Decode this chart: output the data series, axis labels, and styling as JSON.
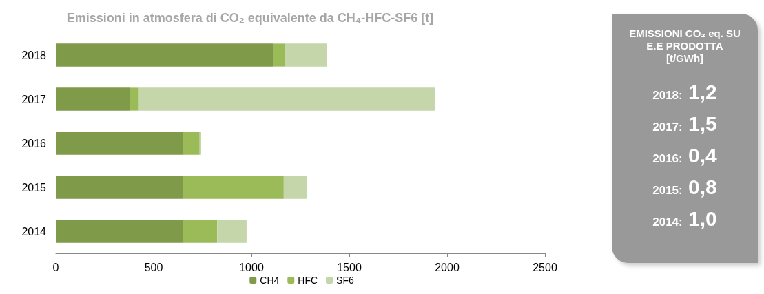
{
  "chart_data": {
    "type": "bar",
    "orientation": "horizontal",
    "stacked": true,
    "title": "Emissioni in atmosfera di CO₂ equivalente da CH₄-HFC-SF6 [t]",
    "categories": [
      "2018",
      "2017",
      "2016",
      "2015",
      "2014"
    ],
    "series": [
      {
        "name": "CH4",
        "color": "#7f9a48",
        "values": [
          1110,
          380,
          650,
          650,
          650
        ]
      },
      {
        "name": "HFC",
        "color": "#9bbb59",
        "values": [
          60,
          45,
          85,
          515,
          175
        ]
      },
      {
        "name": "SF6",
        "color": "#c4d6aa",
        "values": [
          215,
          1515,
          8,
          120,
          150
        ]
      }
    ],
    "xlim": [
      0,
      2500
    ],
    "xticks": [
      0,
      500,
      1000,
      1500,
      2000,
      2500
    ],
    "grid": false,
    "legend": "bottom",
    "annotations": [
      "EMISSIONI CO₂ eq. SU E.E PRODOTTA [t/GWh]",
      "2018: 1,2",
      "2017: 1,5",
      "2016: 0,4",
      "2015: 0,8",
      "2014: 1,0"
    ]
  }
}
